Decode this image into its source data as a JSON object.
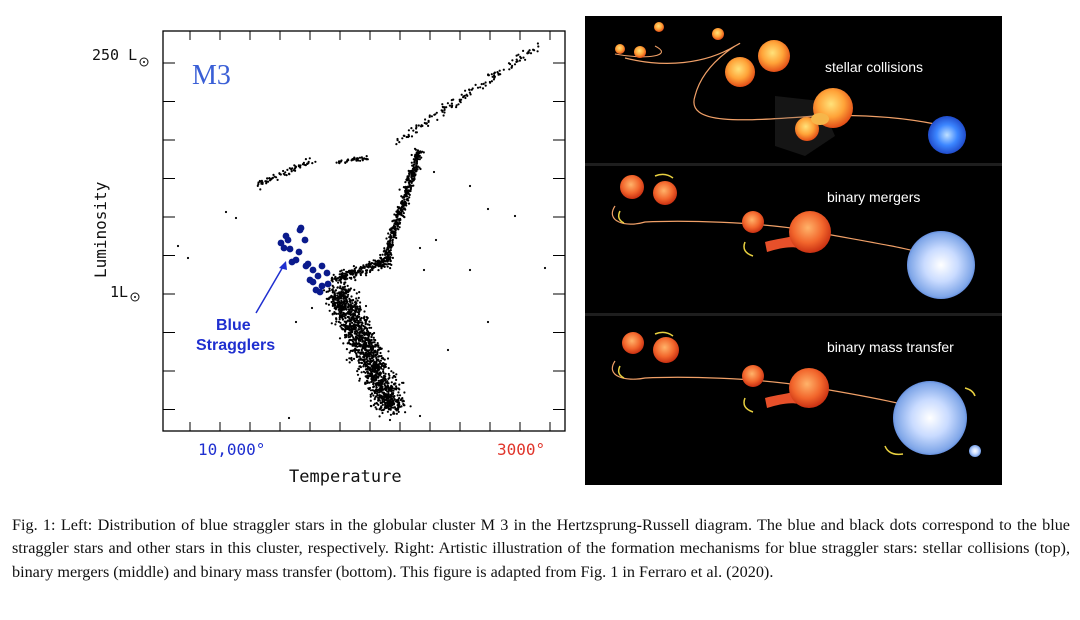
{
  "hr_diagram": {
    "cluster_label": "M3",
    "y_axis_label": "Luminosity",
    "y_top_label": "250  L",
    "y_mid_label": "1L",
    "x_axis_label": "Temperature",
    "x_left_label": "10,000°",
    "x_right_label": "3000°",
    "annotation_line1": "Blue",
    "annotation_line2": "Stragglers",
    "colors": {
      "cluster_label": "#3a5fd6",
      "blue_stragglers": "#0a1a8c",
      "hot": "#1f2fd0",
      "cool": "#e0352b",
      "stars": "#000000"
    }
  },
  "chart_data": {
    "type": "scatter",
    "title": "",
    "xlabel": "Temperature",
    "ylabel": "Luminosity",
    "x_axis": "reversed (hot on left, cool on right)",
    "x_tick_labels": [
      "10,000°",
      "3000°"
    ],
    "y_tick_labels": [
      "250 L☉",
      "1L☉"
    ],
    "series": [
      {
        "name": "Blue Stragglers",
        "color": "#0a1a8c"
      }
    ]
  },
  "illustration": {
    "panels": [
      {
        "label": "stellar collisions"
      },
      {
        "label": "binary mergers"
      },
      {
        "label": "binary mass transfer"
      }
    ]
  },
  "caption": "Fig. 1: Left: Distribution of blue straggler stars in the globular cluster M 3 in the Hertzsprung-Russell diagram. The blue and black dots correspond to the blue straggler stars and other stars in this cluster, respectively. Right: Artistic illustration of the formation mechanisms for blue straggler stars: stellar collisions (top), binary mergers (middle) and binary mass transfer (bottom). This figure is adapted from Fig. 1 in Ferraro et al. (2020)."
}
